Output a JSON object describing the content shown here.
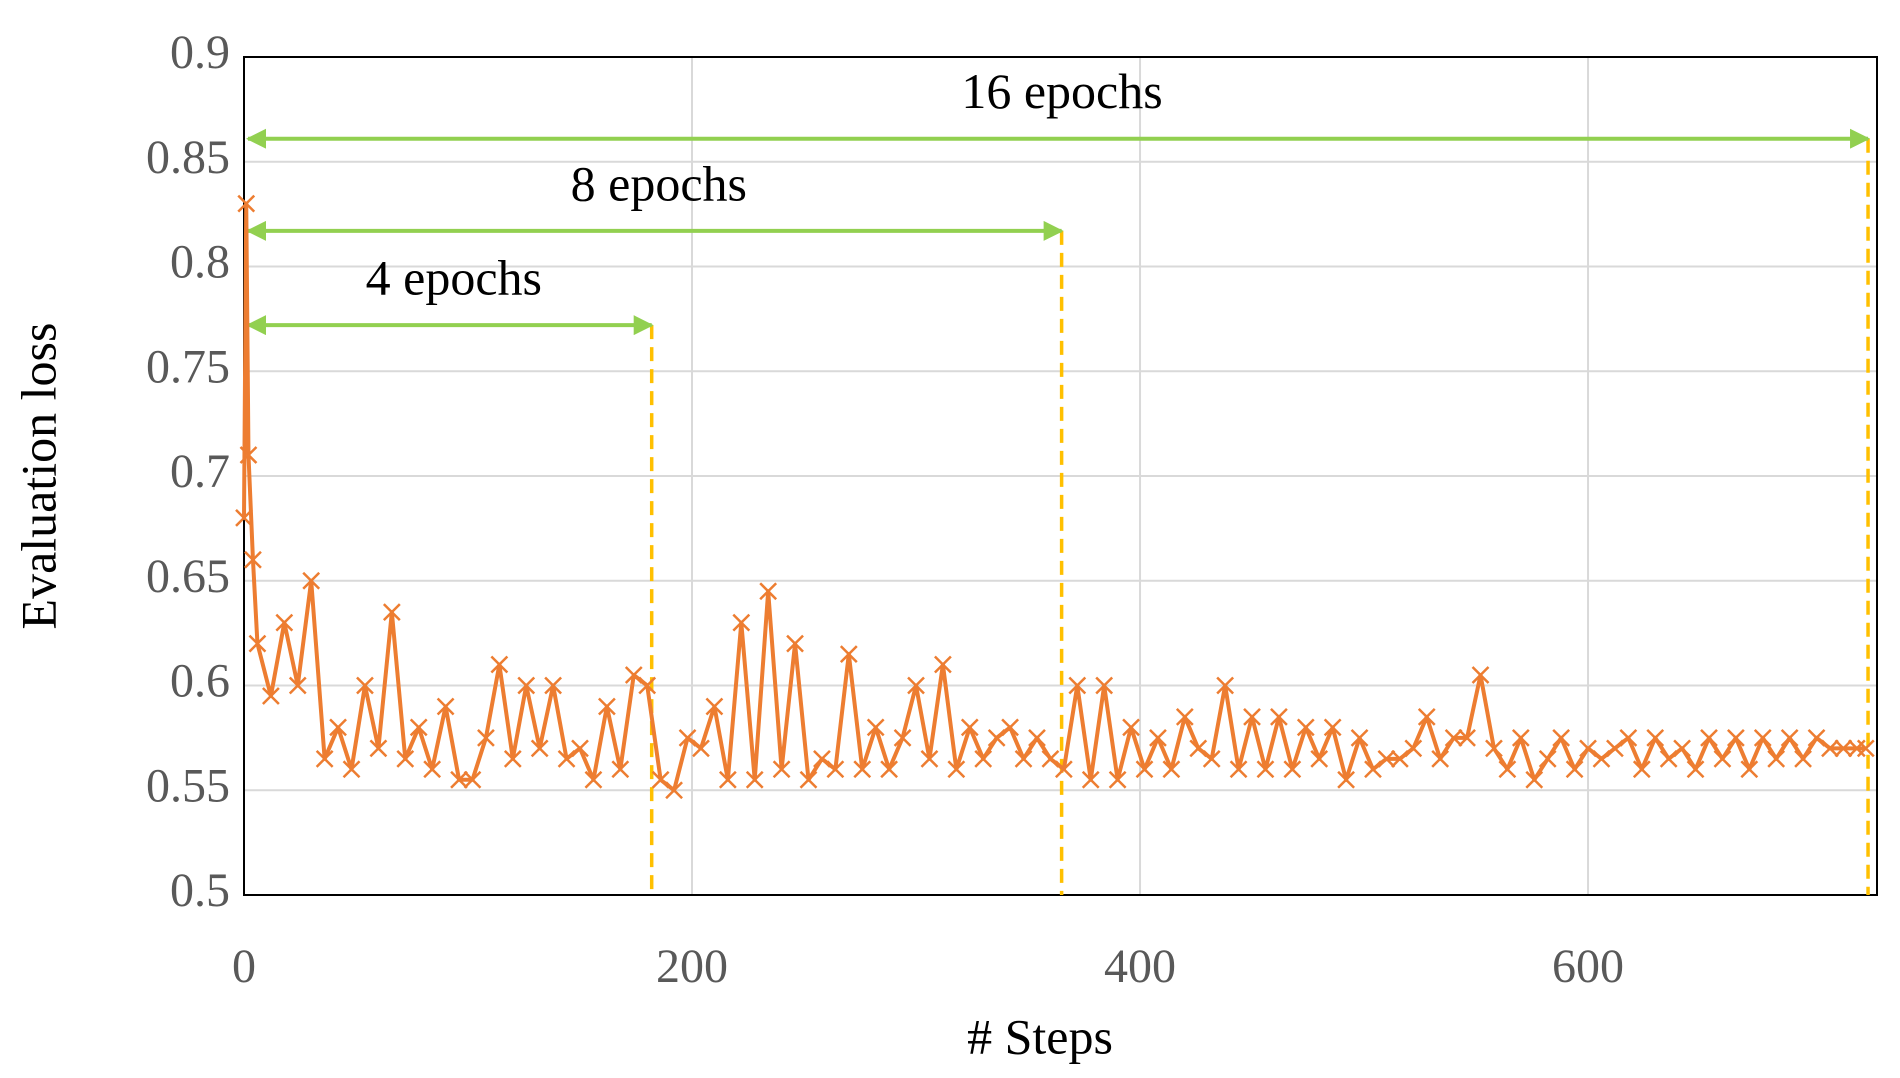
{
  "chart_data": {
    "type": "line",
    "xlabel": "# Steps",
    "ylabel": "Evaluation loss",
    "x": [
      0,
      1,
      2,
      4,
      6,
      12,
      18,
      24,
      30,
      36,
      42,
      48,
      54,
      60,
      66,
      72,
      78,
      84,
      90,
      96,
      102,
      108,
      114,
      120,
      126,
      132,
      138,
      144,
      150,
      156,
      162,
      168,
      174,
      180,
      186,
      192,
      198,
      204,
      210,
      216,
      222,
      228,
      234,
      240,
      246,
      252,
      258,
      264,
      270,
      276,
      282,
      288,
      294,
      300,
      306,
      312,
      318,
      324,
      330,
      336,
      342,
      348,
      354,
      360,
      366,
      372,
      378,
      384,
      390,
      396,
      402,
      408,
      414,
      420,
      426,
      432,
      438,
      444,
      450,
      456,
      462,
      468,
      474,
      480,
      486,
      492,
      498,
      504,
      510,
      516,
      522,
      528,
      534,
      540,
      546,
      552,
      558,
      564,
      570,
      576,
      582,
      588,
      594,
      600,
      606,
      612,
      618,
      624,
      630,
      636,
      642,
      648,
      654,
      660,
      666,
      672,
      678,
      684,
      690,
      696,
      702,
      708,
      714,
      720,
      724
    ],
    "series": [
      {
        "color": "#ED7D31",
        "values": [
          0.68,
          0.83,
          0.71,
          0.66,
          0.62,
          0.595,
          0.63,
          0.6,
          0.65,
          0.565,
          0.58,
          0.56,
          0.6,
          0.57,
          0.635,
          0.565,
          0.58,
          0.56,
          0.59,
          0.555,
          0.555,
          0.575,
          0.61,
          0.565,
          0.6,
          0.57,
          0.6,
          0.565,
          0.57,
          0.555,
          0.59,
          0.56,
          0.605,
          0.6,
          0.555,
          0.55,
          0.575,
          0.57,
          0.59,
          0.555,
          0.63,
          0.555,
          0.645,
          0.56,
          0.62,
          0.555,
          0.565,
          0.56,
          0.615,
          0.56,
          0.58,
          0.56,
          0.575,
          0.6,
          0.565,
          0.61,
          0.56,
          0.58,
          0.565,
          0.575,
          0.58,
          0.565,
          0.575,
          0.565,
          0.56,
          0.6,
          0.555,
          0.6,
          0.555,
          0.58,
          0.56,
          0.575,
          0.56,
          0.585,
          0.57,
          0.565,
          0.6,
          0.56,
          0.585,
          0.56,
          0.585,
          0.56,
          0.58,
          0.565,
          0.58,
          0.555,
          0.575,
          0.56,
          0.565,
          0.565,
          0.57,
          0.585,
          0.565,
          0.575,
          0.575,
          0.605,
          0.57,
          0.56,
          0.575,
          0.555,
          0.565,
          0.575,
          0.56,
          0.57,
          0.565,
          0.57,
          0.575,
          0.56,
          0.575,
          0.565,
          0.57,
          0.56,
          0.575,
          0.565,
          0.575,
          0.56,
          0.575,
          0.565,
          0.575,
          0.565,
          0.575,
          0.57,
          0.57,
          0.57,
          0.57
        ]
      }
    ],
    "xlim": [
      0,
      729
    ],
    "ylim": [
      0.5,
      0.9
    ],
    "xticks": [
      0,
      200,
      400,
      600
    ],
    "yticks": [
      0.5,
      0.55,
      0.6,
      0.65,
      0.7,
      0.75,
      0.8,
      0.85,
      0.9
    ],
    "grid": true,
    "annotations": [
      {
        "text": "4 epochs",
        "x_start": 0,
        "x_end": 182,
        "y": 0.772
      },
      {
        "text": "8 epochs",
        "x_start": 0,
        "x_end": 365,
        "y": 0.817
      },
      {
        "text": "16 epochs",
        "x_start": 0,
        "x_end": 725,
        "y": 0.861
      }
    ],
    "arrow_color": "#92D050",
    "marker_line_color": "#FFC000"
  }
}
